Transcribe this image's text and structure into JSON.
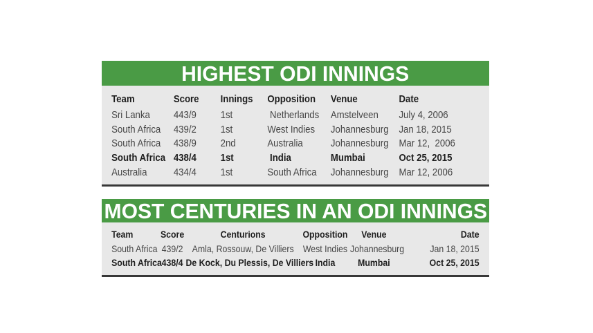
{
  "colors": {
    "banner_green": "#4a9b45",
    "body_gray": "#e8e8e8",
    "rule_dark": "#383838",
    "title_text": "#ffffff",
    "text_regular": "#454545",
    "text_strong": "#1e1e1e"
  },
  "chart_data": [
    {
      "type": "table",
      "title": "HIGHEST ODI INNINGS",
      "columns": [
        "Team",
        "Score",
        "Innings",
        "Opposition",
        "Venue",
        "Date"
      ],
      "rows": [
        {
          "bold": false,
          "cells": [
            "Sri Lanka",
            "443/9",
            "1st",
            " Netherlands",
            "Amstelveen",
            "July 4, 2006"
          ]
        },
        {
          "bold": false,
          "cells": [
            "South Africa",
            "439/2",
            "1st",
            "West Indies",
            "Johannesburg",
            "Jan 18, 2015"
          ]
        },
        {
          "bold": false,
          "cells": [
            "South Africa",
            "438/9",
            "2nd",
            "Australia",
            "Johannesburg",
            "Mar 12,  2006"
          ]
        },
        {
          "bold": true,
          "cells": [
            "South Africa",
            "438/4",
            "1st",
            " India",
            "Mumbai",
            "Oct 25, 2015"
          ]
        },
        {
          "bold": false,
          "cells": [
            "Australia",
            "434/4",
            "1st",
            "South Africa",
            "Johannesburg",
            "Mar 12, 2006"
          ]
        }
      ]
    },
    {
      "type": "table",
      "title": "MOST CENTURIES IN AN ODI INNINGS",
      "columns": [
        "Team",
        "Score",
        "Centurions",
        "Opposition",
        "Venue",
        "Date"
      ],
      "rows": [
        {
          "bold": false,
          "cells": [
            "South Africa",
            "439/2",
            "Amla, Rossouw, De Villiers",
            "West Indies",
            "Johannesburg",
            "Jan 18, 2015"
          ]
        },
        {
          "bold": true,
          "cells": [
            "South Africa",
            "438/4",
            "De Kock, Du Plessis, De Villiers",
            "India",
            "Mumbai",
            "Oct 25, 2015"
          ]
        }
      ]
    }
  ]
}
